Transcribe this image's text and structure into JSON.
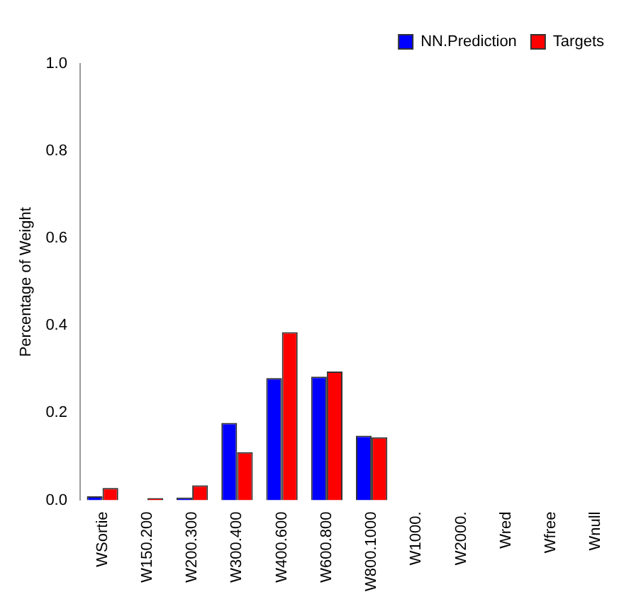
{
  "chart_data": {
    "type": "bar",
    "ylabel": "Percentage of Weight",
    "categories": [
      "WSortie",
      "W150.200",
      "W200.300",
      "W300.400",
      "W400.600",
      "W600.800",
      "W800.1000",
      "W1000.",
      "W2000.",
      "Wred",
      "Wfree",
      "Wnull"
    ],
    "series": [
      {
        "name": "NN.Prediction",
        "color": "#0000ff",
        "values": [
          0.009,
          0,
          0.006,
          0.177,
          0.28,
          0.283,
          0.148,
          0,
          0,
          0,
          0,
          0
        ]
      },
      {
        "name": "Targets",
        "color": "#ff0000",
        "values": [
          0.028,
          0.005,
          0.034,
          0.11,
          0.385,
          0.295,
          0.144,
          0,
          0,
          0,
          0,
          0
        ]
      }
    ],
    "ylim": [
      0,
      1
    ],
    "yticks": [
      {
        "value": 0,
        "label": "0.0"
      },
      {
        "value": 0.2,
        "label": "0.2"
      },
      {
        "value": 0.4,
        "label": "0.4"
      },
      {
        "value": 0.6,
        "label": "0.6"
      },
      {
        "value": 0.8,
        "label": "0.8"
      },
      {
        "value": 1,
        "label": "1.0"
      }
    ],
    "grid": false,
    "legend": "top right"
  }
}
